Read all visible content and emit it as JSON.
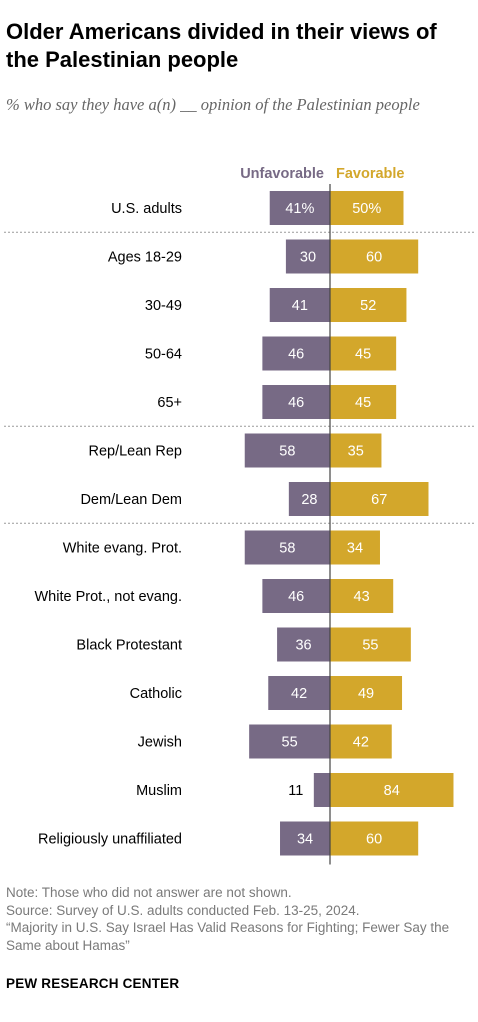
{
  "title": "Older Americans divided in their views of the Palestinian people",
  "subtitle": "% who say they have a(n) __ opinion of the Palestinian people",
  "colors": {
    "unfavorable": "#776a85",
    "favorable": "#d3a72b"
  },
  "chart_data": {
    "type": "bar",
    "orientation": "diverging-horizontal",
    "categories": [
      "U.S. adults",
      "Ages 18-29",
      "30-49",
      "50-64",
      "65+",
      "Rep/Lean Rep",
      "Dem/Lean Dem",
      "White evang. Prot.",
      "White Prot., not evang.",
      "Black Protestant",
      "Catholic",
      "Jewish",
      "Muslim",
      "Religiously unaffiliated"
    ],
    "value_labels": [
      "41%|50%",
      "30|60",
      "41|52",
      "46|45",
      "46|45",
      "58|35",
      "28|67",
      "58|34",
      "46|43",
      "36|55",
      "42|49",
      "55|42",
      "11|84",
      "34|60"
    ],
    "series": [
      {
        "name": "Unfavorable",
        "values": [
          41,
          30,
          41,
          46,
          46,
          58,
          28,
          58,
          46,
          36,
          42,
          55,
          11,
          34
        ]
      },
      {
        "name": "Favorable",
        "values": [
          50,
          60,
          52,
          45,
          45,
          35,
          67,
          34,
          43,
          55,
          49,
          42,
          84,
          60
        ]
      }
    ],
    "groups": [
      [
        0
      ],
      [
        1,
        2,
        3,
        4
      ],
      [
        5,
        6
      ],
      [
        7,
        8,
        9,
        10,
        11,
        12,
        13
      ]
    ]
  },
  "footer": {
    "note": "Note: Those who did not answer are not shown.",
    "source": "Source: Survey of U.S. adults conducted Feb. 13-25, 2024.",
    "report": "“Majority in U.S. Say Israel Has Valid Reasons for Fighting; Fewer Say the Same about Hamas”"
  },
  "brand": "PEW RESEARCH CENTER"
}
